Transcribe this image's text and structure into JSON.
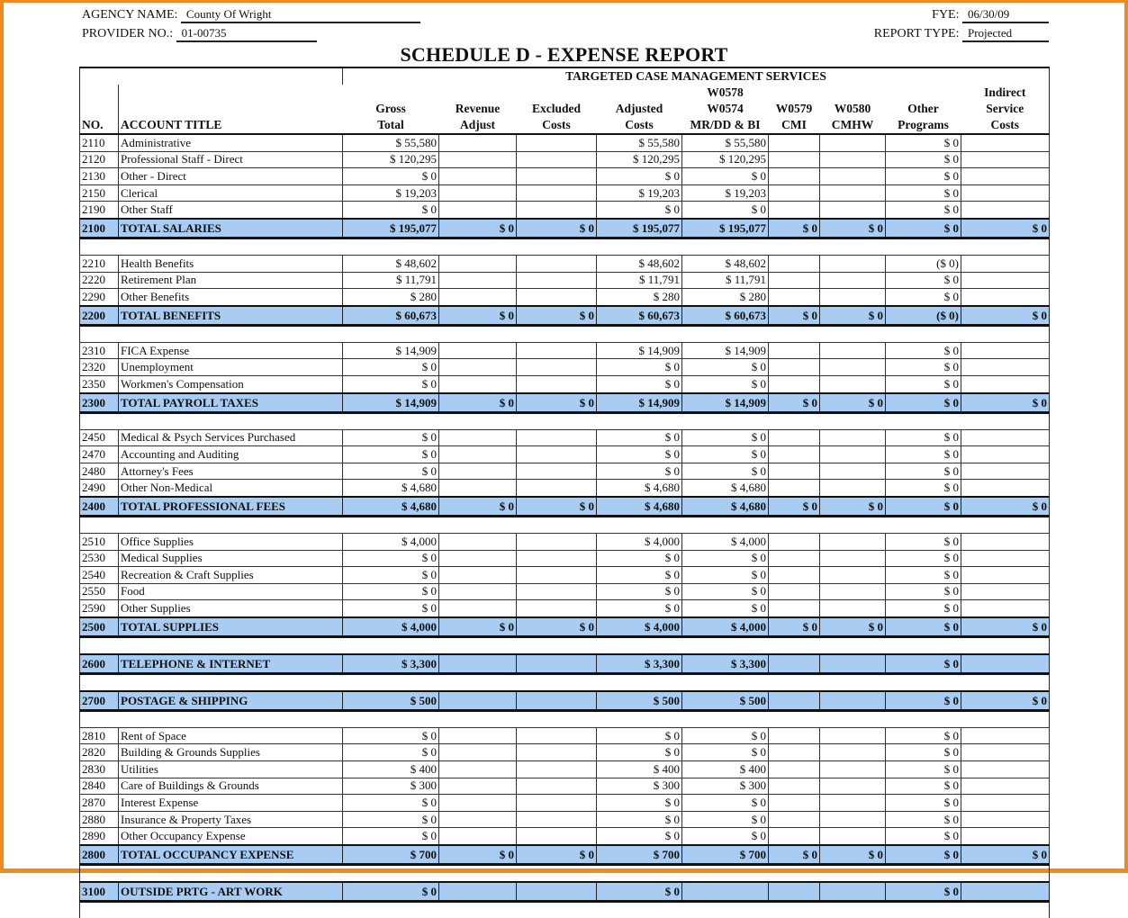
{
  "header": {
    "agency_label": "AGENCY NAME:",
    "agency_value": "County Of Wright",
    "provider_label": "PROVIDER NO.:",
    "provider_value": "01-00735",
    "fye_label": "FYE:",
    "fye_value": "06/30/09",
    "report_type_label": "REPORT TYPE:",
    "report_type_value": "Projected",
    "title": "SCHEDULE D - EXPENSE REPORT",
    "group_header": "TARGETED CASE MANAGEMENT SERVICES"
  },
  "columns": {
    "no": "NO.",
    "title": "ACCOUNT TITLE",
    "gross": [
      "Gross",
      "Total"
    ],
    "revenue": [
      "Revenue",
      "Adjust"
    ],
    "excluded": [
      "Excluded",
      "Costs"
    ],
    "adjusted": [
      "Adjusted",
      "Costs"
    ],
    "w0574": [
      "W0578",
      "W0574",
      "MR/DD & BI"
    ],
    "w0579": [
      "W0579",
      "CMI"
    ],
    "w0580": [
      "W0580",
      "CMHW"
    ],
    "other": [
      "Other",
      "Programs"
    ],
    "indirect": [
      "Indirect",
      "Service",
      "Costs"
    ]
  },
  "colors": {
    "total_row": "#a9cdf2",
    "frame": "#f08a1c"
  },
  "rows": [
    {
      "type": "item",
      "cells": [
        "2110",
        "Administrative",
        "$ 55,580",
        "",
        "",
        "$ 55,580",
        "$ 55,580",
        "",
        "",
        "$ 0",
        ""
      ]
    },
    {
      "type": "item",
      "cells": [
        "2120",
        "Professional Staff - Direct",
        "$ 120,295",
        "",
        "",
        "$ 120,295",
        "$ 120,295",
        "",
        "",
        "$ 0",
        ""
      ]
    },
    {
      "type": "item",
      "cells": [
        "2130",
        "Other - Direct",
        "$ 0",
        "",
        "",
        "$ 0",
        "$ 0",
        "",
        "",
        "$ 0",
        ""
      ]
    },
    {
      "type": "item",
      "cells": [
        "2150",
        "Clerical",
        "$ 19,203",
        "",
        "",
        "$ 19,203",
        "$ 19,203",
        "",
        "",
        "$ 0",
        ""
      ]
    },
    {
      "type": "item",
      "cells": [
        "2190",
        "Other Staff",
        "$ 0",
        "",
        "",
        "$ 0",
        "$ 0",
        "",
        "",
        "$ 0",
        ""
      ]
    },
    {
      "type": "total",
      "cells": [
        "2100",
        "TOTAL SALARIES",
        "$ 195,077",
        "$ 0",
        "$ 0",
        "$ 195,077",
        "$ 195,077",
        "$ 0",
        "$ 0",
        "$ 0",
        "$ 0"
      ]
    },
    {
      "type": "blank"
    },
    {
      "type": "item",
      "cells": [
        "2210",
        "Health Benefits",
        "$ 48,602",
        "",
        "",
        "$ 48,602",
        "$ 48,602",
        "",
        "",
        "($ 0)",
        ""
      ]
    },
    {
      "type": "item",
      "cells": [
        "2220",
        "Retirement Plan",
        "$ 11,791",
        "",
        "",
        "$ 11,791",
        "$ 11,791",
        "",
        "",
        "$ 0",
        ""
      ]
    },
    {
      "type": "item",
      "cells": [
        "2290",
        "Other Benefits",
        "$ 280",
        "",
        "",
        "$ 280",
        "$ 280",
        "",
        "",
        "$ 0",
        ""
      ]
    },
    {
      "type": "total",
      "cells": [
        "2200",
        "TOTAL BENEFITS",
        "$ 60,673",
        "$ 0",
        "$ 0",
        "$ 60,673",
        "$ 60,673",
        "$ 0",
        "$ 0",
        "($ 0)",
        "$ 0"
      ]
    },
    {
      "type": "blank"
    },
    {
      "type": "item",
      "cells": [
        "2310",
        "FICA Expense",
        "$ 14,909",
        "",
        "",
        "$ 14,909",
        "$ 14,909",
        "",
        "",
        "$ 0",
        ""
      ]
    },
    {
      "type": "item",
      "cells": [
        "2320",
        "Unemployment",
        "$ 0",
        "",
        "",
        "$ 0",
        "$ 0",
        "",
        "",
        "$ 0",
        ""
      ]
    },
    {
      "type": "item",
      "cells": [
        "2350",
        "Workmen's Compensation",
        "$ 0",
        "",
        "",
        "$ 0",
        "$ 0",
        "",
        "",
        "$ 0",
        ""
      ]
    },
    {
      "type": "total",
      "cells": [
        "2300",
        "TOTAL PAYROLL TAXES",
        "$ 14,909",
        "$ 0",
        "$ 0",
        "$ 14,909",
        "$ 14,909",
        "$ 0",
        "$ 0",
        "$ 0",
        "$ 0"
      ]
    },
    {
      "type": "blank"
    },
    {
      "type": "item",
      "cells": [
        "2450",
        "Medical & Psych Services Purchased",
        "$ 0",
        "",
        "",
        "$ 0",
        "$ 0",
        "",
        "",
        "$ 0",
        ""
      ]
    },
    {
      "type": "item",
      "cells": [
        "2470",
        "Accounting and Auditing",
        "$ 0",
        "",
        "",
        "$ 0",
        "$ 0",
        "",
        "",
        "$ 0",
        ""
      ]
    },
    {
      "type": "item",
      "cells": [
        "2480",
        "Attorney's Fees",
        "$ 0",
        "",
        "",
        "$ 0",
        "$ 0",
        "",
        "",
        "$ 0",
        ""
      ]
    },
    {
      "type": "item",
      "cells": [
        "2490",
        "Other Non-Medical",
        "$ 4,680",
        "",
        "",
        "$ 4,680",
        "$ 4,680",
        "",
        "",
        "$ 0",
        ""
      ]
    },
    {
      "type": "total",
      "cells": [
        "2400",
        "TOTAL PROFESSIONAL FEES",
        "$ 4,680",
        "$ 0",
        "$ 0",
        "$ 4,680",
        "$ 4,680",
        "$ 0",
        "$ 0",
        "$ 0",
        "$ 0"
      ]
    },
    {
      "type": "blank"
    },
    {
      "type": "item",
      "cells": [
        "2510",
        "Office Supplies",
        "$ 4,000",
        "",
        "",
        "$ 4,000",
        "$ 4,000",
        "",
        "",
        "$ 0",
        ""
      ]
    },
    {
      "type": "item",
      "cells": [
        "2530",
        "Medical Supplies",
        "$ 0",
        "",
        "",
        "$ 0",
        "$ 0",
        "",
        "",
        "$ 0",
        ""
      ]
    },
    {
      "type": "item",
      "cells": [
        "2540",
        "Recreation & Craft Supplies",
        "$ 0",
        "",
        "",
        "$ 0",
        "$ 0",
        "",
        "",
        "$ 0",
        ""
      ]
    },
    {
      "type": "item",
      "cells": [
        "2550",
        "Food",
        "$ 0",
        "",
        "",
        "$ 0",
        "$ 0",
        "",
        "",
        "$ 0",
        ""
      ]
    },
    {
      "type": "item",
      "cells": [
        "2590",
        "Other Supplies",
        "$ 0",
        "",
        "",
        "$ 0",
        "$ 0",
        "",
        "",
        "$ 0",
        ""
      ]
    },
    {
      "type": "total",
      "cells": [
        "2500",
        "TOTAL SUPPLIES",
        "$ 4,000",
        "$ 0",
        "$ 0",
        "$ 4,000",
        "$ 4,000",
        "$ 0",
        "$ 0",
        "$ 0",
        "$ 0"
      ]
    },
    {
      "type": "blank"
    },
    {
      "type": "total",
      "cells": [
        "2600",
        "TELEPHONE & INTERNET",
        "$ 3,300",
        "",
        "",
        "$ 3,300",
        "$ 3,300",
        "",
        "",
        "$ 0",
        ""
      ]
    },
    {
      "type": "blank"
    },
    {
      "type": "total",
      "cells": [
        "2700",
        "POSTAGE & SHIPPING",
        "$ 500",
        "",
        "",
        "$ 500",
        "$ 500",
        "",
        "",
        "$ 0",
        "$ 0"
      ]
    },
    {
      "type": "blank"
    },
    {
      "type": "item",
      "cells": [
        "2810",
        "Rent of Space",
        "$ 0",
        "",
        "",
        "$ 0",
        "$ 0",
        "",
        "",
        "$ 0",
        ""
      ]
    },
    {
      "type": "item",
      "cells": [
        "2820",
        "Building & Grounds Supplies",
        "$ 0",
        "",
        "",
        "$ 0",
        "$ 0",
        "",
        "",
        "$ 0",
        ""
      ]
    },
    {
      "type": "item",
      "cells": [
        "2830",
        "Utilities",
        "$ 400",
        "",
        "",
        "$ 400",
        "$ 400",
        "",
        "",
        "$ 0",
        ""
      ]
    },
    {
      "type": "item",
      "cells": [
        "2840",
        "Care of Buildings & Grounds",
        "$ 300",
        "",
        "",
        "$ 300",
        "$ 300",
        "",
        "",
        "$ 0",
        ""
      ]
    },
    {
      "type": "item",
      "cells": [
        "2870",
        "Interest Expense",
        "$ 0",
        "",
        "",
        "$ 0",
        "$ 0",
        "",
        "",
        "$ 0",
        ""
      ]
    },
    {
      "type": "item",
      "cells": [
        "2880",
        "Insurance & Property Taxes",
        "$ 0",
        "",
        "",
        "$ 0",
        "$ 0",
        "",
        "",
        "$ 0",
        ""
      ]
    },
    {
      "type": "item",
      "cells": [
        "2890",
        "Other Occupancy Expense",
        "$ 0",
        "",
        "",
        "$ 0",
        "$ 0",
        "",
        "",
        "$ 0",
        ""
      ]
    },
    {
      "type": "total",
      "cells": [
        "2800",
        "TOTAL OCCUPANCY EXPENSE",
        "$ 700",
        "$ 0",
        "$ 0",
        "$ 700",
        "$ 700",
        "$ 0",
        "$ 0",
        "$ 0",
        "$ 0"
      ]
    },
    {
      "type": "blank"
    },
    {
      "type": "total",
      "cells": [
        "3100",
        "OUTSIDE PRTG - ART WORK",
        "$ 0",
        "",
        "",
        "$ 0",
        "",
        "",
        "",
        "$ 0",
        ""
      ]
    },
    {
      "type": "blank"
    }
  ]
}
